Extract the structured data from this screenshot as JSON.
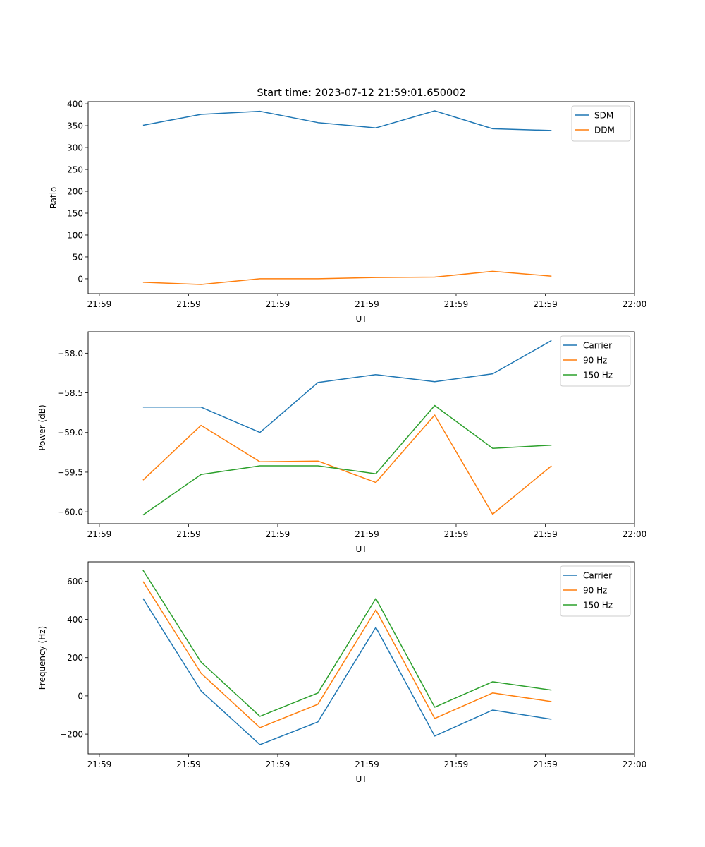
{
  "chart_data": [
    {
      "type": "line",
      "title": "Start time: 2023-07-12 21:59:01.650002",
      "xlabel": "UT",
      "ylabel": "Ratio",
      "x_tick_values": [
        0,
        1,
        2,
        3,
        4,
        5,
        6
      ],
      "x_tick_labels": [
        "21:59",
        "21:59",
        "21:59",
        "21:59",
        "21:59",
        "21:59",
        "22:00"
      ],
      "xlim": [
        -0.126,
        6
      ],
      "ylim": [
        -34,
        405
      ],
      "y_ticks": [
        0,
        50,
        100,
        150,
        200,
        250,
        300,
        350,
        400
      ],
      "y_tick_labels": [
        "0",
        "50",
        "100",
        "150",
        "200",
        "250",
        "300",
        "350",
        "400"
      ],
      "x": [
        0.49,
        1.14,
        1.8,
        2.45,
        3.1,
        3.76,
        4.41,
        5.07
      ],
      "legend_position": "top-right",
      "series": [
        {
          "name": "SDM",
          "color": "#1f77b4",
          "values": [
            351,
            376,
            383,
            357,
            345,
            384,
            343,
            339
          ]
        },
        {
          "name": "DDM",
          "color": "#ff7f0e",
          "values": [
            -8,
            -13,
            0,
            0,
            3,
            4,
            17,
            6
          ]
        }
      ]
    },
    {
      "type": "line",
      "xlabel": "UT",
      "ylabel": "Power (dB)",
      "x_tick_values": [
        0,
        1,
        2,
        3,
        4,
        5,
        6
      ],
      "x_tick_labels": [
        "21:59",
        "21:59",
        "21:59",
        "21:59",
        "21:59",
        "21:59",
        "22:00"
      ],
      "xlim": [
        -0.126,
        6
      ],
      "ylim": [
        -60.15,
        -57.73
      ],
      "y_ticks": [
        -60.0,
        -59.5,
        -59.0,
        -58.5,
        -58.0
      ],
      "y_tick_labels": [
        "−60.0",
        "−59.5",
        "−59.0",
        "−58.5",
        "−58.0"
      ],
      "x": [
        0.49,
        1.14,
        1.8,
        2.45,
        3.1,
        3.76,
        4.41,
        5.07
      ],
      "legend_position": "top-right",
      "series": [
        {
          "name": "Carrier",
          "color": "#1f77b4",
          "values": [
            -58.68,
            -58.68,
            -59.0,
            -58.37,
            -58.27,
            -58.36,
            -58.26,
            -57.84
          ]
        },
        {
          "name": "90 Hz",
          "color": "#ff7f0e",
          "values": [
            -59.6,
            -58.91,
            -59.37,
            -59.36,
            -59.63,
            -58.78,
            -60.03,
            -59.42
          ]
        },
        {
          "name": "150 Hz",
          "color": "#2ca02c",
          "values": [
            -60.04,
            -59.53,
            -59.42,
            -59.42,
            -59.52,
            -58.66,
            -59.2,
            -59.16
          ]
        }
      ]
    },
    {
      "type": "line",
      "xlabel": "UT",
      "ylabel": "Frequency (Hz)",
      "x_tick_values": [
        0,
        1,
        2,
        3,
        4,
        5,
        6
      ],
      "x_tick_labels": [
        "21:59",
        "21:59",
        "21:59",
        "21:59",
        "21:59",
        "21:59",
        "22:00"
      ],
      "xlim": [
        -0.126,
        6
      ],
      "ylim": [
        -303,
        701
      ],
      "y_ticks": [
        -200,
        0,
        200,
        400,
        600
      ],
      "y_tick_labels": [
        "−200",
        "0",
        "200",
        "400",
        "600"
      ],
      "x": [
        0.49,
        1.14,
        1.8,
        2.45,
        3.1,
        3.76,
        4.41,
        5.07
      ],
      "legend_position": "top-right",
      "series": [
        {
          "name": "Carrier",
          "color": "#1f77b4",
          "values": [
            509,
            26,
            -255,
            -136,
            358,
            -210,
            -74,
            -122
          ]
        },
        {
          "name": "90 Hz",
          "color": "#ff7f0e",
          "values": [
            598,
            118,
            -166,
            -44,
            450,
            -118,
            15,
            -30
          ]
        },
        {
          "name": "150 Hz",
          "color": "#2ca02c",
          "values": [
            657,
            177,
            -107,
            15,
            509,
            -59,
            74,
            30
          ]
        }
      ]
    }
  ]
}
